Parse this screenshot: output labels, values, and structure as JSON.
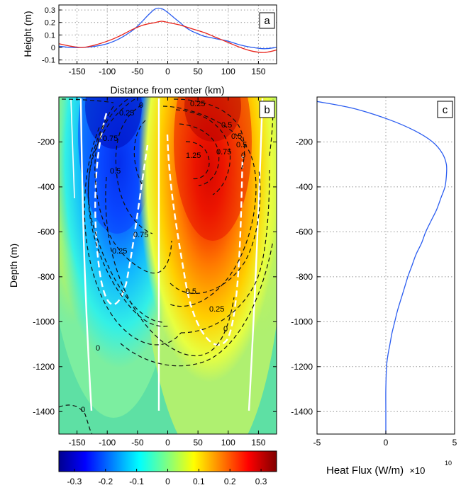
{
  "chart_data": [
    {
      "type": "line",
      "panel_label": "a",
      "xlabel": "Distance from center (km)",
      "ylabel": "Height (m)",
      "xlim": [
        -180,
        180
      ],
      "ylim": [
        -0.13,
        0.34
      ],
      "xticks": [
        -150,
        -100,
        -50,
        0,
        50,
        100,
        150
      ],
      "yticks": [
        -0.1,
        0,
        0.1,
        0.2,
        0.3
      ],
      "ytick_labels": [
        "-0.1",
        "0",
        "0.1",
        "0.2",
        "0.3"
      ],
      "grid": true,
      "series": [
        {
          "color": "#2a5cf0",
          "x": [
            -180,
            -160,
            -140,
            -120,
            -100,
            -80,
            -60,
            -50,
            -40,
            -30,
            -20,
            -10,
            0,
            10,
            20,
            30,
            40,
            50,
            60,
            80,
            100,
            120,
            140,
            160,
            180
          ],
          "y": [
            0.01,
            0.0,
            0.0,
            0.01,
            0.03,
            0.07,
            0.13,
            0.17,
            0.22,
            0.27,
            0.31,
            0.31,
            0.28,
            0.24,
            0.2,
            0.16,
            0.13,
            0.11,
            0.09,
            0.07,
            0.05,
            0.02,
            0.0,
            -0.01,
            0.0
          ]
        },
        {
          "color": "#e8231a",
          "x": [
            -180,
            -160,
            -140,
            -120,
            -100,
            -80,
            -60,
            -40,
            -20,
            -10,
            0,
            20,
            40,
            60,
            80,
            100,
            120,
            140,
            160,
            180
          ],
          "y": [
            0.03,
            0.01,
            0.0,
            0.02,
            0.05,
            0.09,
            0.14,
            0.18,
            0.2,
            0.21,
            0.2,
            0.18,
            0.15,
            0.12,
            0.08,
            0.04,
            0.0,
            -0.03,
            -0.04,
            -0.02
          ]
        }
      ]
    },
    {
      "type": "heatmap",
      "panel_label": "b",
      "ylabel": "Depth (m)",
      "xlim": [
        -180,
        180
      ],
      "ylim": [
        -1500,
        0
      ],
      "xticks": [
        -150,
        -100,
        -50,
        0,
        50,
        100,
        150
      ],
      "yticks": [
        -200,
        -400,
        -600,
        -800,
        -1000,
        -1200,
        -1400
      ],
      "colorbar": {
        "min": -0.35,
        "max": 0.35,
        "ticks": [
          -0.3,
          -0.2,
          -0.1,
          0,
          0.1,
          0.2,
          0.3
        ],
        "tick_labels": [
          "-0.3",
          "-0.2",
          "-0.1",
          "0",
          "0.1",
          "0.2",
          "0.3"
        ],
        "colormap": "jet"
      },
      "contour_labels": [
        "0",
        "0.25",
        "0.75",
        "0.5",
        "0.75",
        "0.25",
        "0.25",
        "0.5",
        "1.25",
        "0.75",
        "0.5",
        "0.5",
        "0",
        "-0.5",
        "0.25",
        "0",
        "0",
        "0"
      ]
    },
    {
      "type": "line",
      "panel_label": "c",
      "xlabel": "Heat Flux (W/m)",
      "x_multiplier": "×10",
      "x_exponent": "10",
      "xlim": [
        -5,
        5
      ],
      "ylim": [
        -1500,
        0
      ],
      "xticks": [
        -5,
        0,
        5
      ],
      "yticks": [
        -200,
        -400,
        -600,
        -800,
        -1000,
        -1200,
        -1400
      ],
      "grid": true,
      "series": [
        {
          "color": "#2a5cf0",
          "y": [
            -20,
            -50,
            -100,
            -150,
            -200,
            -250,
            -300,
            -350,
            -400,
            -450,
            -500,
            -550,
            -600,
            -650,
            -700,
            -750,
            -800,
            -850,
            -900,
            -950,
            -1000,
            -1050,
            -1100,
            -1150,
            -1200,
            -1300,
            -1400,
            -1500
          ],
          "x": [
            -5,
            -2.4,
            0.2,
            2.1,
            3.4,
            4.1,
            4.4,
            4.4,
            4.3,
            4.0,
            3.7,
            3.3,
            2.9,
            2.6,
            2.2,
            1.9,
            1.6,
            1.35,
            1.1,
            0.85,
            0.65,
            0.45,
            0.3,
            0.15,
            0.05,
            0.0,
            0.0,
            0.0
          ]
        }
      ]
    }
  ]
}
